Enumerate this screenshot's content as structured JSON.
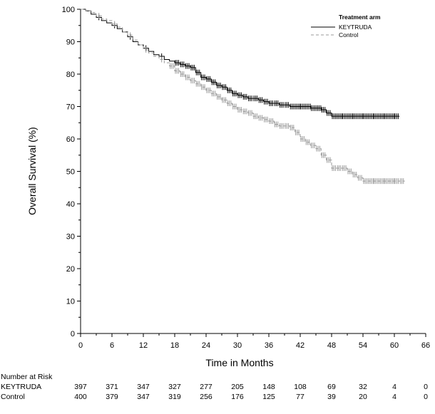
{
  "chart_data": {
    "type": "line",
    "title": "",
    "xlabel": "Time in Months",
    "ylabel": "Overall Survival (%)",
    "xlim": [
      0,
      66
    ],
    "ylim": [
      0,
      100
    ],
    "x_ticks": [
      0,
      6,
      12,
      18,
      24,
      30,
      36,
      42,
      48,
      54,
      60,
      66
    ],
    "y_ticks": [
      0,
      10,
      20,
      30,
      40,
      50,
      60,
      70,
      80,
      90,
      100
    ],
    "grid": false,
    "legend": {
      "title": "Treatment arm",
      "placement": "top-right",
      "entries": [
        "KEYTRUDA",
        "Control"
      ]
    },
    "series": [
      {
        "name": "KEYTRUDA",
        "color": "#000000",
        "style": "solid",
        "x": [
          0,
          1,
          2,
          3,
          4,
          5,
          6,
          7,
          8,
          9,
          10,
          11,
          12,
          13,
          14,
          15,
          16,
          17,
          18,
          19,
          20,
          21,
          22,
          23,
          24,
          25,
          26,
          27,
          28,
          29,
          30,
          31,
          32,
          33,
          34,
          35,
          36,
          37,
          38,
          39,
          40,
          42,
          44,
          46,
          47,
          48,
          50,
          52,
          54,
          56,
          58,
          60,
          61
        ],
        "y": [
          100,
          99.5,
          98.5,
          97.5,
          96.5,
          95.8,
          95,
          94,
          93,
          91.5,
          90,
          89,
          88,
          87,
          86,
          85.5,
          84.5,
          84,
          83.5,
          83,
          82.5,
          82,
          80.5,
          79,
          78.5,
          77.5,
          76.5,
          76,
          75,
          74,
          73.5,
          73,
          72.5,
          72.5,
          72,
          71.5,
          71,
          71,
          70.5,
          70.5,
          70,
          70,
          69.5,
          69,
          68,
          67,
          67,
          67,
          67,
          67,
          67,
          67,
          67
        ]
      },
      {
        "name": "Control",
        "color": "#9a9a9a",
        "style": "dashed",
        "x": [
          0,
          1,
          2,
          3,
          4,
          5,
          6,
          7,
          8,
          9,
          10,
          11,
          12,
          13,
          14,
          15,
          16,
          17,
          18,
          19,
          20,
          21,
          22,
          23,
          24,
          25,
          26,
          27,
          28,
          29,
          30,
          31,
          32,
          33,
          34,
          35,
          36,
          37,
          38,
          39,
          40,
          41,
          42,
          43,
          44,
          45,
          46,
          47,
          48,
          49,
          50,
          51,
          52,
          53,
          54,
          56,
          58,
          60,
          61,
          62
        ],
        "y": [
          100,
          99.5,
          99,
          98,
          97,
          96.5,
          95.5,
          94.5,
          93,
          92,
          90.5,
          89,
          87.5,
          86.5,
          85.5,
          84.5,
          83.5,
          82.5,
          81,
          80,
          79,
          78,
          77,
          76,
          75,
          74,
          73,
          72,
          71,
          70,
          69,
          68.5,
          68,
          67,
          66.5,
          66,
          65.5,
          64.5,
          64,
          64,
          63.5,
          62,
          60,
          59,
          58,
          57,
          55,
          53.5,
          51,
          51,
          51,
          50,
          49,
          48,
          47,
          47,
          47,
          47,
          47,
          47
        ]
      }
    ],
    "risk_table": {
      "title": "Number at Risk",
      "times": [
        0,
        6,
        12,
        18,
        24,
        30,
        36,
        42,
        48,
        54,
        60,
        66
      ],
      "rows": [
        {
          "label": "KEYTRUDA",
          "values": [
            "397",
            "371",
            "347",
            "327",
            "277",
            "205",
            "148",
            "108",
            "69",
            "32",
            "4",
            "0"
          ]
        },
        {
          "label": "Control",
          "values": [
            "400",
            "379",
            "347",
            "319",
            "256",
            "176",
            "125",
            "77",
            "39",
            "20",
            "4",
            "0"
          ]
        }
      ]
    }
  }
}
